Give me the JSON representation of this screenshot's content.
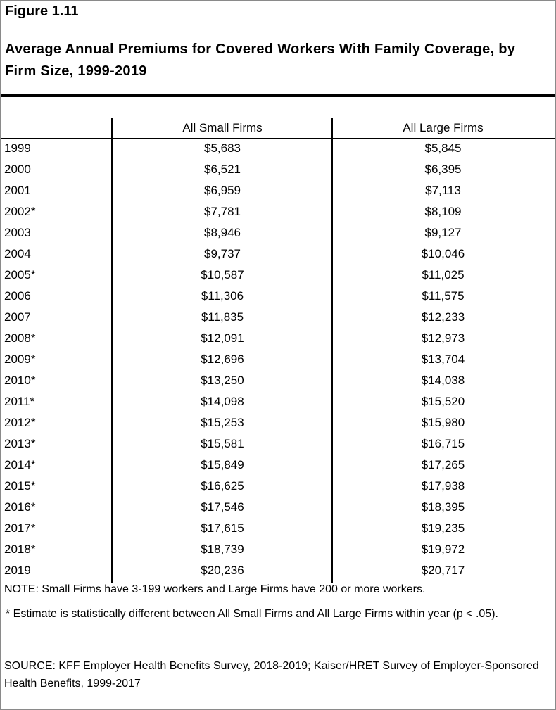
{
  "figure_label": "Figure 1.11",
  "title": "Average Annual Premiums for Covered Workers With Family Coverage, by Firm Size, 1999-2019",
  "table": {
    "columns": [
      "",
      "All Small Firms",
      "All Large Firms"
    ],
    "rows": [
      {
        "year": "1999",
        "small": "$5,683",
        "large": "$5,845"
      },
      {
        "year": "2000",
        "small": "$6,521",
        "large": "$6,395"
      },
      {
        "year": "2001",
        "small": "$6,959",
        "large": "$7,113"
      },
      {
        "year": "2002*",
        "small": "$7,781",
        "large": "$8,109"
      },
      {
        "year": "2003",
        "small": "$8,946",
        "large": "$9,127"
      },
      {
        "year": "2004",
        "small": "$9,737",
        "large": "$10,046"
      },
      {
        "year": "2005*",
        "small": "$10,587",
        "large": "$11,025"
      },
      {
        "year": "2006",
        "small": "$11,306",
        "large": "$11,575"
      },
      {
        "year": "2007",
        "small": "$11,835",
        "large": "$12,233"
      },
      {
        "year": "2008*",
        "small": "$12,091",
        "large": "$12,973"
      },
      {
        "year": "2009*",
        "small": "$12,696",
        "large": "$13,704"
      },
      {
        "year": "2010*",
        "small": "$13,250",
        "large": "$14,038"
      },
      {
        "year": "2011*",
        "small": "$14,098",
        "large": "$15,520"
      },
      {
        "year": "2012*",
        "small": "$15,253",
        "large": "$15,980"
      },
      {
        "year": "2013*",
        "small": "$15,581",
        "large": "$16,715"
      },
      {
        "year": "2014*",
        "small": "$15,849",
        "large": "$17,265"
      },
      {
        "year": "2015*",
        "small": "$16,625",
        "large": "$17,938"
      },
      {
        "year": "2016*",
        "small": "$17,546",
        "large": "$18,395"
      },
      {
        "year": "2017*",
        "small": "$17,615",
        "large": "$19,235"
      },
      {
        "year": "2018*",
        "small": "$18,739",
        "large": "$19,972"
      },
      {
        "year": "2019",
        "small": "$20,236",
        "large": "$20,717"
      }
    ]
  },
  "notes": {
    "note": "NOTE: Small Firms have 3-199 workers and Large Firms have 200 or more workers.",
    "significance": "* Estimate is statistically different between All Small Firms and All Large Firms within year (p < .05).",
    "source": "SOURCE: KFF Employer Health Benefits Survey, 2018-2019; Kaiser/HRET Survey of Employer-Sponsored Health Benefits, 1999-2017"
  }
}
